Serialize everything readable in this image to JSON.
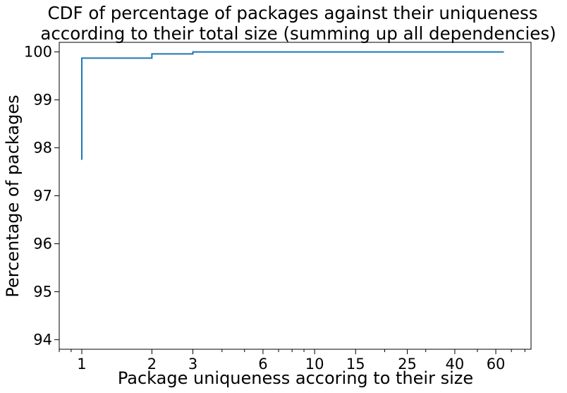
{
  "chart_data": {
    "type": "line",
    "step": "post",
    "title": [
      "CDF of percentage of packages against their uniqueness",
      "according to their total size (summing up all dependencies)"
    ],
    "xlabel": "Package uniqueness accoring to their size",
    "ylabel": "Percentage of packages",
    "x_scale": "log",
    "xlim": [
      0.8,
      85
    ],
    "ylim": [
      93.8,
      100.2
    ],
    "x_ticks": [
      1,
      2,
      3,
      6,
      10,
      15,
      25,
      40,
      60
    ],
    "x_tick_labels": [
      "1",
      "2",
      "3",
      "6",
      "10",
      "15",
      "25",
      "40",
      "60"
    ],
    "y_ticks": [
      94,
      95,
      96,
      97,
      98,
      99,
      100
    ],
    "y_tick_labels": [
      "94",
      "95",
      "96",
      "97",
      "98",
      "99",
      "100"
    ],
    "grid": false,
    "legend": "none",
    "series": [
      {
        "color": "#1f77b4",
        "points": [
          [
            1,
            97.75
          ],
          [
            1,
            99.87
          ],
          [
            2,
            99.96
          ],
          [
            3,
            100.0
          ],
          [
            65,
            100.0
          ]
        ]
      }
    ]
  }
}
